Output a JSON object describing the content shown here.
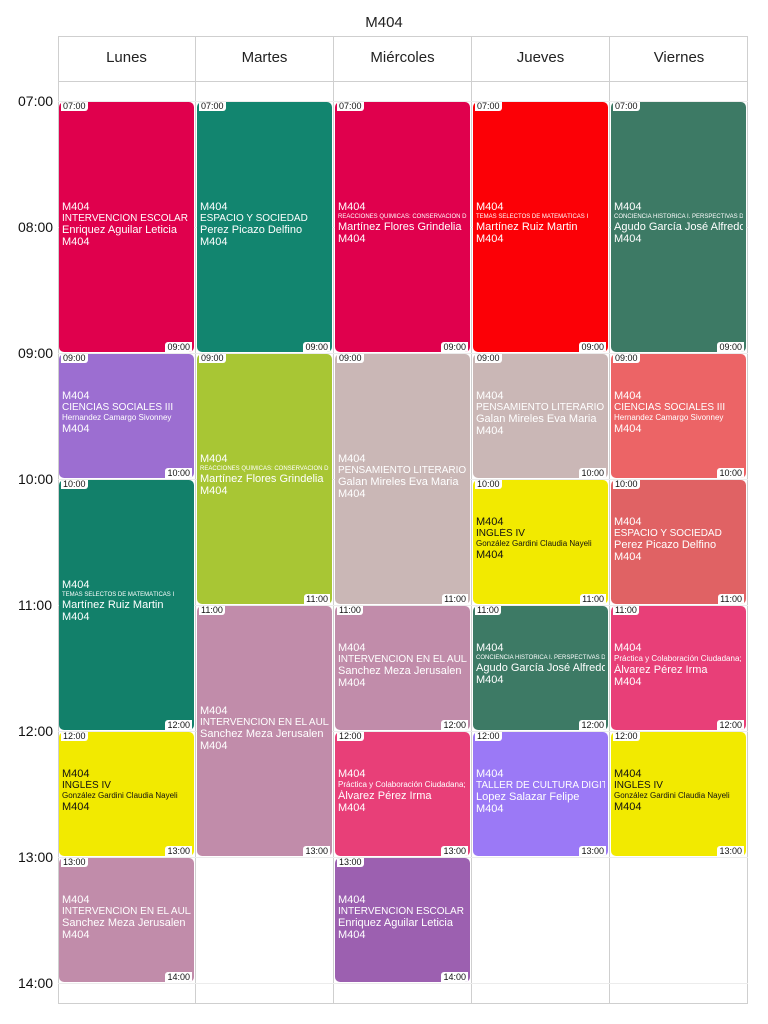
{
  "title": "M404",
  "days": [
    "Lunes",
    "Martes",
    "Miércoles",
    "Jueves",
    "Viernes"
  ],
  "hours": [
    "07:00",
    "08:00",
    "09:00",
    "10:00",
    "11:00",
    "12:00",
    "13:00",
    "14:00"
  ],
  "events": [
    {
      "day": 0,
      "start": "07:00",
      "end": "09:00",
      "room": "M404",
      "subject": "INTERVENCIÓN ESCOLAR",
      "teacher": "Enriquez Aguilar Leticia",
      "room2": "M404",
      "color": "#e0004d",
      "text": "light"
    },
    {
      "day": 0,
      "start": "09:00",
      "end": "10:00",
      "room": "M404",
      "subject": "CIENCIAS SOCIALES III",
      "teacher": "Hernandez Camargo Sivonney",
      "room2": "M404",
      "color": "#9c6ed1",
      "text": "light",
      "tsize": "small-teacher"
    },
    {
      "day": 0,
      "start": "10:00",
      "end": "12:00",
      "room": "M404",
      "subject": "TEMAS SELECTOS DE MATEMÁTICAS I",
      "teacher": "Martínez Ruiz Martin",
      "room2": "M404",
      "color": "#12806a",
      "text": "light",
      "ssize": "small"
    },
    {
      "day": 0,
      "start": "12:00",
      "end": "13:00",
      "room": "M404",
      "subject": "INGLÉS IV",
      "teacher": "González Gardini Claudia Nayeli",
      "room2": "M404",
      "color": "#f2ea00",
      "text": "dark",
      "tsize": "small-teacher"
    },
    {
      "day": 0,
      "start": "13:00",
      "end": "14:00",
      "room": "M404",
      "subject": "INTERVENCIÓN EN EL AULA",
      "teacher": "Sanchez Meza Jerusalen",
      "room2": "M404",
      "color": "#c18caa",
      "text": "light"
    },
    {
      "day": 1,
      "start": "07:00",
      "end": "09:00",
      "room": "M404",
      "subject": "ESPACIO Y SOCIEDAD",
      "teacher": "Perez Picazo Delfino",
      "room2": "M404",
      "color": "#12856f",
      "text": "light"
    },
    {
      "day": 1,
      "start": "09:00",
      "end": "11:00",
      "room": "M404",
      "subject": "REACCIONES QUÍMICAS: CONSERVACIÓN DE LA MATERIA...",
      "teacher": "Martínez Flores Grindelia",
      "room2": "M404",
      "color": "#a8c634",
      "text": "light",
      "ssize": "small"
    },
    {
      "day": 1,
      "start": "11:00",
      "end": "13:00",
      "room": "M404",
      "subject": "INTERVENCIÓN EN EL AULA",
      "teacher": "Sanchez Meza Jerusalen",
      "room2": "M404",
      "color": "#c18caa",
      "text": "light"
    },
    {
      "day": 2,
      "start": "07:00",
      "end": "09:00",
      "room": "M404",
      "subject": "REACCIONES QUÍMICAS: CONSERVACIÓN DE LA MATERIA...",
      "teacher": "Martínez Flores Grindelia",
      "room2": "M404",
      "color": "#e0004d",
      "text": "light",
      "ssize": "small"
    },
    {
      "day": 2,
      "start": "09:00",
      "end": "11:00",
      "room": "M404",
      "subject": "PENSAMIENTO LITERARIO",
      "teacher": "Galan Mireles Eva Maria",
      "room2": "M404",
      "color": "#cab7b6",
      "text": "light"
    },
    {
      "day": 2,
      "start": "11:00",
      "end": "12:00",
      "room": "M404",
      "subject": "INTERVENCIÓN EN EL AULA",
      "teacher": "Sanchez Meza Jerusalen",
      "room2": "M404",
      "color": "#c18caa",
      "text": "light"
    },
    {
      "day": 2,
      "start": "12:00",
      "end": "13:00",
      "room": "M404",
      "subject": "Práctica y Colaboración Ciudadana;",
      "teacher": "Álvarez Pérez Irma",
      "room2": "M404",
      "color": "#e83f78",
      "text": "light",
      "ssize": "tiny"
    },
    {
      "day": 2,
      "start": "13:00",
      "end": "14:00",
      "room": "M404",
      "subject": "INTERVENCIÓN ESCOLAR",
      "teacher": "Enriquez Aguilar Leticia",
      "room2": "M404",
      "color": "#9c60b0",
      "text": "light"
    },
    {
      "day": 3,
      "start": "07:00",
      "end": "09:00",
      "room": "M404",
      "subject": "TEMAS SELECTOS DE MATEMÁTICAS I",
      "teacher": "Martínez Ruiz Martin",
      "room2": "M404",
      "color": "#fc0006",
      "text": "light",
      "ssize": "small"
    },
    {
      "day": 3,
      "start": "09:00",
      "end": "10:00",
      "room": "M404",
      "subject": "PENSAMIENTO LITERARIO",
      "teacher": "Galan Mireles Eva Maria",
      "room2": "M404",
      "color": "#cab7b6",
      "text": "light"
    },
    {
      "day": 3,
      "start": "10:00",
      "end": "11:00",
      "room": "M404",
      "subject": "INGLÉS IV",
      "teacher": "González Gardini Claudia Nayeli",
      "room2": "M404",
      "color": "#f2ea00",
      "text": "dark",
      "tsize": "small-teacher"
    },
    {
      "day": 3,
      "start": "11:00",
      "end": "12:00",
      "room": "M404",
      "subject": "CONCIENCIA HISTÓRICA I. PERSPECTIVAS DEL MÉXICO...",
      "teacher": "Agudo García José Alfredo",
      "room2": "M404",
      "color": "#3d7a65",
      "text": "light",
      "ssize": "small"
    },
    {
      "day": 3,
      "start": "12:00",
      "end": "13:00",
      "room": "M404",
      "subject": "TALLER DE CULTURA DIGITAL",
      "teacher": "Lopez Salazar Felipe",
      "room2": "M404",
      "color": "#9b79f6",
      "text": "light"
    },
    {
      "day": 4,
      "start": "07:00",
      "end": "09:00",
      "room": "M404",
      "subject": "CONCIENCIA HISTÓRICA I. PERSPECTIVAS DEL MÉXICO...",
      "teacher": "Agudo García José Alfredo",
      "room2": "M404",
      "color": "#3d7a65",
      "text": "light",
      "ssize": "small"
    },
    {
      "day": 4,
      "start": "09:00",
      "end": "10:00",
      "room": "M404",
      "subject": "CIENCIAS SOCIALES III",
      "teacher": "Hernandez Camargo Sivonney",
      "room2": "M404",
      "color": "#ec6466",
      "text": "light",
      "tsize": "small-teacher"
    },
    {
      "day": 4,
      "start": "10:00",
      "end": "11:00",
      "room": "M404",
      "subject": "ESPACIO Y SOCIEDAD",
      "teacher": "Perez Picazo Delfino",
      "room2": "M404",
      "color": "#e06264",
      "text": "light"
    },
    {
      "day": 4,
      "start": "11:00",
      "end": "12:00",
      "room": "M404",
      "subject": "Práctica y Colaboración Ciudadana;",
      "teacher": "Álvarez Pérez Irma",
      "room2": "M404",
      "color": "#e83f78",
      "text": "light",
      "ssize": "tiny"
    },
    {
      "day": 4,
      "start": "12:00",
      "end": "13:00",
      "room": "M404",
      "subject": "INGLÉS IV",
      "teacher": "González Gardini Claudia Nayeli",
      "room2": "M404",
      "color": "#f2ea00",
      "text": "dark",
      "tsize": "small-teacher"
    }
  ]
}
